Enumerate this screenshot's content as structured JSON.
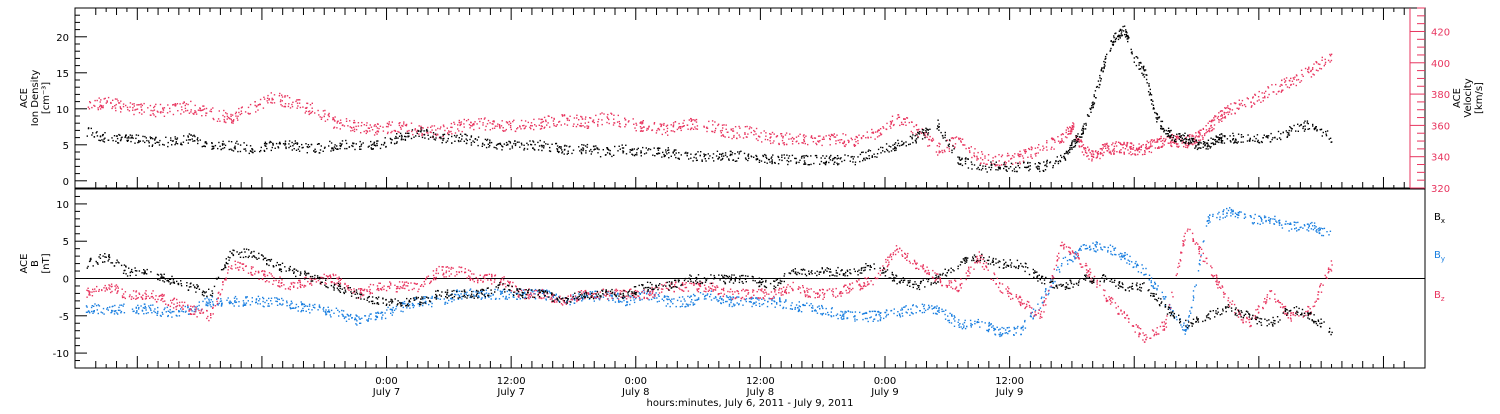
{
  "chart_data": [
    {
      "type": "scatter",
      "panel": "top",
      "ylabel_left": [
        "ACE",
        "Ion Density",
        "[cm⁻³]"
      ],
      "ylabel_right": [
        "ACE",
        "Velocity",
        "[km/s]"
      ],
      "ylim_left": [
        -1,
        24
      ],
      "ylim_right": [
        320,
        435
      ],
      "yticks_left": [
        "0",
        "5",
        "10",
        "15",
        "20"
      ],
      "yticks_right": [
        "320",
        "340",
        "360",
        "380",
        "400",
        "420"
      ],
      "x_range_hours": [
        -30,
        100
      ],
      "series": [
        {
          "name": "Ion Density",
          "color": "#000000",
          "axis": "left",
          "x": [
            -29,
            -27,
            -25,
            -23,
            -21,
            -19,
            -17,
            -15,
            -13,
            -11,
            -9,
            -7,
            -5,
            -3,
            -1,
            1,
            3,
            5,
            7,
            9,
            11,
            13,
            15,
            17,
            19,
            21,
            23,
            25,
            27,
            29,
            31,
            33,
            35,
            37,
            39,
            41,
            43,
            45,
            47,
            49,
            51,
            53,
            55,
            57,
            59,
            61,
            63,
            65,
            66,
            67,
            68,
            69,
            70,
            71,
            72,
            73,
            74,
            75,
            76,
            77,
            78,
            79,
            80,
            81,
            83,
            85,
            87,
            89,
            91
          ],
          "y": [
            7,
            6,
            6,
            5.5,
            5.5,
            6,
            5,
            5,
            4.5,
            5,
            5,
            4.5,
            5,
            5,
            5,
            6,
            7,
            6,
            6,
            5.5,
            5,
            5,
            5,
            4.5,
            4.5,
            4,
            4.5,
            4,
            4,
            3.5,
            3.5,
            3.5,
            3.5,
            3,
            3,
            3,
            3,
            3,
            4,
            5,
            6,
            8,
            3,
            2,
            2,
            2,
            2,
            3,
            5,
            7,
            11,
            16,
            20,
            21,
            17,
            15,
            9,
            7,
            6,
            6,
            5,
            5,
            6,
            6,
            6,
            6,
            7,
            8,
            6
          ]
        },
        {
          "name": "Velocity",
          "color": "#e8355f",
          "axis": "right",
          "x": [
            -29,
            -27,
            -25,
            -23,
            -21,
            -19,
            -17,
            -15,
            -13,
            -11,
            -9,
            -7,
            -5,
            -3,
            -1,
            1,
            3,
            5,
            7,
            9,
            11,
            13,
            15,
            17,
            19,
            21,
            23,
            25,
            27,
            29,
            31,
            33,
            35,
            37,
            39,
            41,
            43,
            45,
            47,
            49,
            51,
            53,
            55,
            57,
            59,
            61,
            63,
            65,
            66,
            67,
            68,
            69,
            70,
            71,
            72,
            73,
            74,
            75,
            76,
            77,
            78,
            79,
            80,
            81,
            83,
            85,
            87,
            89,
            91
          ],
          "y": [
            372,
            375,
            372,
            370,
            370,
            372,
            368,
            365,
            372,
            378,
            375,
            370,
            362,
            360,
            358,
            360,
            358,
            356,
            360,
            362,
            360,
            360,
            362,
            365,
            362,
            365,
            362,
            360,
            358,
            362,
            360,
            356,
            356,
            352,
            352,
            350,
            352,
            350,
            355,
            365,
            358,
            345,
            350,
            340,
            338,
            340,
            345,
            352,
            360,
            345,
            340,
            345,
            346,
            346,
            345,
            346,
            348,
            352,
            350,
            350,
            352,
            358,
            365,
            370,
            375,
            382,
            388,
            395,
            405
          ]
        }
      ]
    },
    {
      "type": "scatter",
      "panel": "bottom",
      "ylabel_left": [
        "ACE",
        "B",
        "[nT]"
      ],
      "ylim": [
        -12,
        12
      ],
      "yticks": [
        "-10",
        "-5",
        "0",
        "5",
        "10"
      ],
      "x_range_hours": [
        -30,
        100
      ],
      "x_tick_labels": [
        {
          "x": 0,
          "line1": "0:00",
          "line2": "July 7"
        },
        {
          "x": 12,
          "line1": "12:00",
          "line2": "July 7"
        },
        {
          "x": 24,
          "line1": "0:00",
          "line2": "July 8"
        },
        {
          "x": 36,
          "line1": "12:00",
          "line2": "July 8"
        },
        {
          "x": 48,
          "line1": "0:00",
          "line2": "July 9"
        },
        {
          "x": 60,
          "line1": "12:00",
          "line2": "July 9"
        }
      ],
      "xlabel": "hours:minutes, July  6, 2011 - July  9, 2011",
      "series": [
        {
          "name": "B",
          "sub": "x",
          "color": "#000000",
          "x": [
            -29,
            -27,
            -25,
            -23,
            -21,
            -19,
            -17,
            -15,
            -13,
            -11,
            -9,
            -7,
            -5,
            -3,
            -1,
            1,
            3,
            5,
            7,
            9,
            11,
            13,
            15,
            17,
            19,
            21,
            23,
            25,
            27,
            29,
            31,
            33,
            35,
            37,
            39,
            41,
            43,
            45,
            47,
            49,
            51,
            53,
            55,
            57,
            59,
            61,
            63,
            65,
            67,
            69,
            71,
            73,
            75,
            77,
            79,
            81,
            83,
            85,
            87,
            89,
            91
          ],
          "y": [
            2,
            3,
            1,
            1,
            0,
            -1,
            -2,
            3.5,
            3.5,
            2,
            1,
            0,
            -1,
            -2,
            -3,
            -3,
            -3,
            -2,
            -2,
            -2,
            -1,
            -2,
            -2,
            -3,
            -2,
            -2,
            -2,
            -1,
            -1,
            0,
            0,
            0,
            0,
            -1,
            1,
            1,
            1,
            1,
            2,
            0,
            -1,
            0,
            2,
            3,
            2,
            2,
            0,
            -1,
            0,
            0,
            -1,
            -1,
            -4,
            -6,
            -5,
            -4,
            -5,
            -6,
            -4,
            -5,
            -7
          ]
        },
        {
          "name": "B",
          "sub": "y",
          "color": "#1a7fe0",
          "x": [
            -29,
            -27,
            -25,
            -23,
            -21,
            -19,
            -17,
            -15,
            -13,
            -11,
            -9,
            -7,
            -5,
            -3,
            -1,
            1,
            3,
            5,
            7,
            9,
            11,
            13,
            15,
            17,
            19,
            21,
            23,
            25,
            27,
            29,
            31,
            33,
            35,
            37,
            39,
            41,
            43,
            45,
            47,
            49,
            51,
            53,
            55,
            57,
            59,
            61,
            63,
            65,
            67,
            69,
            71,
            73,
            75,
            77,
            79,
            81,
            83,
            85,
            87,
            89,
            91
          ],
          "y": [
            -4,
            -4,
            -4,
            -4,
            -4.5,
            -4,
            -3,
            -3,
            -3,
            -3,
            -3.5,
            -4,
            -4.5,
            -5.5,
            -5,
            -4,
            -3,
            -3,
            -2,
            -2,
            -2,
            -2,
            -2,
            -3,
            -2.5,
            -2,
            -3,
            -2,
            -3,
            -3,
            -2,
            -3,
            -3,
            -3,
            -3.5,
            -4,
            -4.5,
            -5,
            -5,
            -4.5,
            -4,
            -4,
            -6,
            -6,
            -7,
            -7,
            -3,
            2,
            4,
            4.5,
            3,
            1,
            -3,
            -7,
            8,
            9,
            8,
            8,
            7,
            7,
            6
          ]
        },
        {
          "name": "B",
          "sub": "z",
          "color": "#e8355f",
          "x": [
            -29,
            -27,
            -25,
            -23,
            -21,
            -19,
            -17,
            -15,
            -13,
            -11,
            -9,
            -7,
            -5,
            -3,
            -1,
            1,
            3,
            5,
            7,
            9,
            11,
            13,
            15,
            17,
            19,
            21,
            23,
            25,
            27,
            29,
            31,
            33,
            35,
            37,
            39,
            41,
            43,
            45,
            47,
            49,
            51,
            53,
            55,
            57,
            59,
            61,
            63,
            65,
            67,
            69,
            71,
            73,
            75,
            77,
            79,
            81,
            83,
            85,
            87,
            89,
            91
          ],
          "y": [
            -2,
            -1,
            -2,
            -2,
            -3,
            -4,
            -5,
            2,
            1,
            0,
            -1,
            0,
            0,
            -2,
            -1,
            -1,
            -1,
            1,
            1,
            0,
            0,
            -2,
            -2,
            -3,
            -2,
            -2,
            -2,
            -2,
            -1,
            -1,
            -1,
            -2,
            -2,
            -2,
            -1,
            -2,
            -2,
            -1,
            0,
            4,
            2,
            0,
            -1,
            3,
            -1,
            -3,
            -5,
            5,
            2,
            -2,
            -5,
            -8,
            -6,
            7,
            2,
            -3,
            -6,
            -2,
            -5,
            -4,
            2
          ]
        }
      ],
      "legend": {
        "items": [
          {
            "label": "B",
            "sub": "x",
            "color": "#000000"
          },
          {
            "label": "B",
            "sub": "y",
            "color": "#1a7fe0"
          },
          {
            "label": "B",
            "sub": "z",
            "color": "#e8355f"
          }
        ],
        "placement": "right"
      },
      "zero_line": true
    }
  ]
}
